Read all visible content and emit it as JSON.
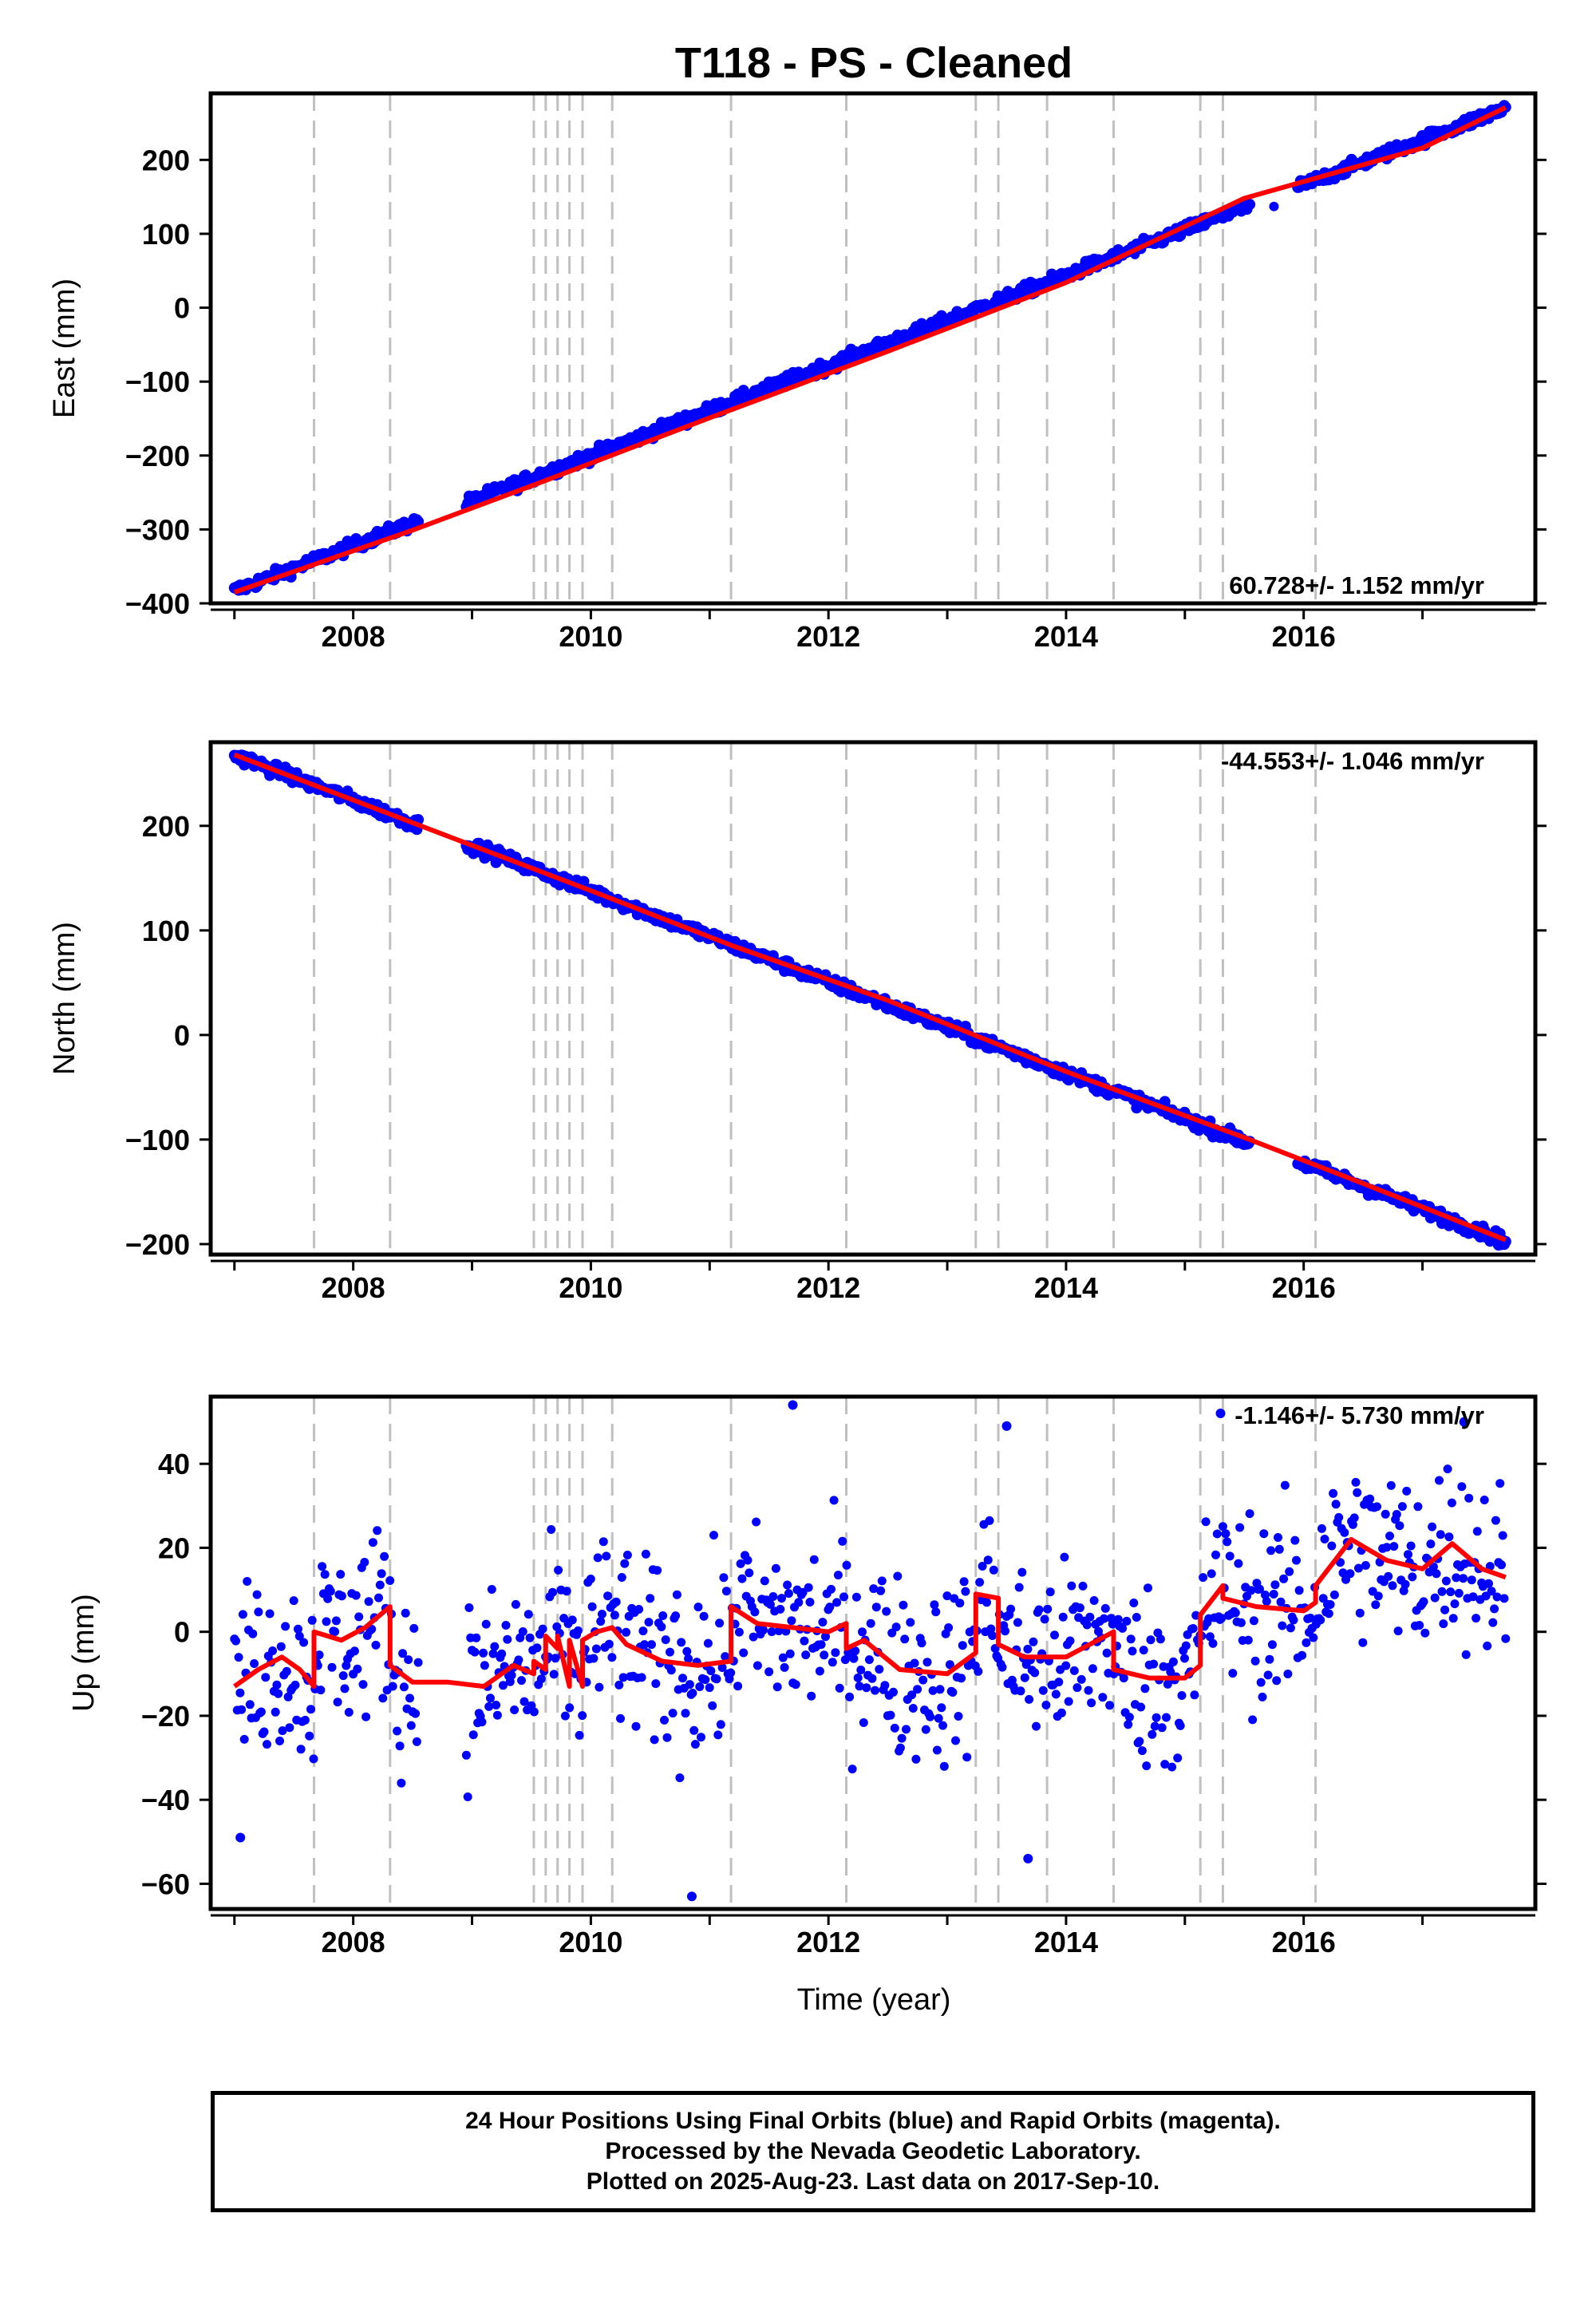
{
  "title": "T118  - PS - Cleaned",
  "xlabel": "Time (year)",
  "footer": {
    "line1": "24 Hour Positions Using Final Orbits (blue) and Rapid Orbits (magenta).",
    "line2": "Processed by the Nevada Geodetic Laboratory.",
    "line3": "Plotted on 2025-Aug-23. Last data on 2017-Sep-10."
  },
  "colors": {
    "data": "#0000ff",
    "model": "#ff0000",
    "breaks": "#c0c0c0",
    "frame": "#000000"
  },
  "chart_data": [
    {
      "type": "scatter",
      "ylabel": "East (mm)",
      "rate_label": "60.728+/- 1.152 mm/yr",
      "rate_position": "bottom-right",
      "xlim": [
        2006.8,
        2017.95
      ],
      "ylim": [
        -400,
        290
      ],
      "xticks": [
        2008,
        2010,
        2012,
        2014,
        2016
      ],
      "yticks": [
        -400,
        -300,
        -200,
        -100,
        0,
        100,
        200
      ],
      "ytick_labels": [
        "−400",
        "−300",
        "−200",
        "−100",
        "0",
        "100",
        "200"
      ],
      "equipment_changes": [
        2007.67,
        2008.31,
        2009.52,
        2009.62,
        2009.72,
        2009.82,
        2009.93,
        2010.18,
        2011.18,
        2012.15,
        2013.24,
        2013.43,
        2013.84,
        2014.4,
        2015.13,
        2015.32,
        2016.1
      ],
      "model": {
        "x": [
          2007.0,
          2008.5,
          2009.5,
          2011.0,
          2012.5,
          2014.0,
          2015.5,
          2017.0,
          2017.7
        ],
        "y": [
          -385,
          -301,
          -241,
          -149,
          -59,
          34,
          148,
          216,
          271
        ]
      },
      "series": [
        {
          "x_start": 2007.0,
          "x_end": 2017.7,
          "y_start": -383,
          "y_end": 270,
          "scatter": 4,
          "gaps": [
            [
              2008.55,
              2008.95
            ],
            [
              2015.55,
              2015.95
            ]
          ],
          "outliers": [
            [
              2015.75,
              137
            ],
            [
              2014.58,
              72
            ]
          ]
        }
      ]
    },
    {
      "type": "scatter",
      "ylabel": "North (mm)",
      "rate_label": "-44.553+/- 1.046 mm/yr",
      "rate_position": "top-right",
      "xlim": [
        2006.8,
        2017.95
      ],
      "ylim": [
        -210,
        280
      ],
      "xticks": [
        2008,
        2010,
        2012,
        2014,
        2016
      ],
      "yticks": [
        -200,
        -100,
        0,
        100,
        200
      ],
      "ytick_labels": [
        "−200",
        "−100",
        "0",
        "100",
        "200"
      ],
      "equipment_changes": [
        2007.67,
        2008.31,
        2009.52,
        2009.62,
        2009.72,
        2009.82,
        2009.93,
        2010.18,
        2011.18,
        2012.15,
        2013.24,
        2013.43,
        2013.84,
        2014.4,
        2015.13,
        2015.32,
        2016.1
      ],
      "model": {
        "x": [
          2007.0,
          2008.5,
          2010.0,
          2011.2,
          2012.5,
          2014.0,
          2015.5,
          2016.5,
          2017.7
        ],
        "y": [
          268,
          203,
          138,
          85,
          33,
          -35,
          -98,
          -142,
          -196
        ]
      },
      "series": [
        {
          "x_start": 2007.0,
          "x_end": 2017.7,
          "y_start": 268,
          "y_end": -197,
          "scatter": 3,
          "gaps": [
            [
              2008.55,
              2008.95
            ],
            [
              2015.55,
              2015.95
            ]
          ],
          "outliers": []
        }
      ]
    },
    {
      "type": "scatter",
      "ylabel": "Up (mm)",
      "rate_label": "-1.146+/- 5.730 mm/yr",
      "rate_position": "top-right",
      "xlim": [
        2006.8,
        2017.95
      ],
      "ylim": [
        -66,
        56
      ],
      "xticks": [
        2008,
        2010,
        2012,
        2014,
        2016
      ],
      "yticks": [
        -60,
        -40,
        -20,
        0,
        20,
        40
      ],
      "ytick_labels": [
        "−60",
        "−40",
        "−20",
        "0",
        "20",
        "40"
      ],
      "equipment_changes": [
        2007.67,
        2008.31,
        2009.52,
        2009.62,
        2009.72,
        2009.82,
        2009.93,
        2010.18,
        2011.18,
        2012.15,
        2013.24,
        2013.43,
        2013.84,
        2014.4,
        2015.13,
        2015.32,
        2016.1
      ],
      "model": {
        "x": [
          2007.0,
          2007.2,
          2007.4,
          2007.55,
          2007.67,
          2007.67,
          2007.9,
          2008.1,
          2008.31,
          2008.31,
          2008.5,
          2008.8,
          2009.1,
          2009.35,
          2009.52,
          2009.52,
          2009.62,
          2009.62,
          2009.72,
          2009.72,
          2009.82,
          2009.82,
          2009.93,
          2009.93,
          2010.05,
          2010.18,
          2010.3,
          2010.6,
          2010.9,
          2011.18,
          2011.18,
          2011.4,
          2011.7,
          2012.0,
          2012.15,
          2012.15,
          2012.3,
          2012.6,
          2013.0,
          2013.24,
          2013.24,
          2013.43,
          2013.43,
          2013.65,
          2014.0,
          2014.2,
          2014.4,
          2014.4,
          2014.7,
          2015.0,
          2015.13,
          2015.13,
          2015.32,
          2015.32,
          2015.6,
          2016.0,
          2016.1,
          2016.1,
          2016.4,
          2016.7,
          2017.0,
          2017.25,
          2017.5,
          2017.7
        ],
        "y": [
          -13,
          -9,
          -6,
          -9,
          -13,
          0,
          -2,
          1,
          6,
          -8,
          -12,
          -12,
          -13,
          -8,
          -10,
          -7,
          -9,
          -1,
          -4,
          -1,
          -13,
          -2,
          -13,
          -2,
          0,
          1,
          -3,
          -7,
          -8,
          -7,
          6,
          2,
          1,
          0,
          2,
          -4,
          -2,
          -9,
          -10,
          -5,
          9,
          8,
          -3,
          -6,
          -6,
          -3,
          0,
          -9,
          -11,
          -11,
          -8,
          4,
          11,
          8,
          6,
          5,
          7,
          11,
          22,
          17,
          15,
          21,
          15,
          13
        ]
      },
      "series": [
        {
          "x_start": 2007.0,
          "x_end": 2017.7,
          "scatter": 11,
          "follows_model": true,
          "gaps": [
            [
              2008.55,
              2008.95
            ]
          ],
          "outliers": [
            [
              2007.05,
              -49
            ],
            [
              2010.85,
              -63
            ],
            [
              2013.68,
              -54
            ],
            [
              2011.7,
              54
            ],
            [
              2013.5,
              49
            ],
            [
              2015.3,
              52
            ],
            [
              2017.35,
              50
            ]
          ]
        }
      ]
    }
  ]
}
